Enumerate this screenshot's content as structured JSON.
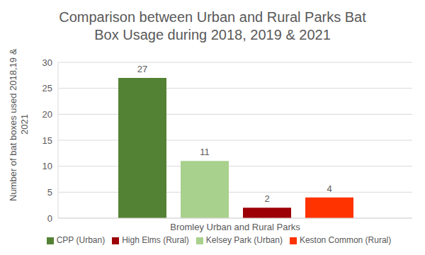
{
  "chart_data": {
    "type": "bar",
    "title": "Comparison between Urban and Rural Parks Bat Box Usage during 2018, 2019 & 2021",
    "y_label": "Number of bat boxes used 2018,19 & 2021",
    "categories": [
      "Bromley Urban and Rural Parks"
    ],
    "series": [
      {
        "name": "CPP (Urban)",
        "color": "#548235",
        "values": [
          27
        ]
      },
      {
        "name": "Kelsey Park (Urban)",
        "color": "#a9d18e",
        "values": [
          11
        ]
      },
      {
        "name": "High Elms (Rural)",
        "color": "#9c0006",
        "values": [
          2
        ]
      },
      {
        "name": "Keston Common (Rural)",
        "color": "#ff3300",
        "values": [
          4
        ]
      }
    ],
    "ylim": [
      0,
      30
    ],
    "yticks": [
      0,
      5,
      10,
      15,
      20,
      25,
      30
    ],
    "grid": true,
    "data_labels": true,
    "legend": "bottom"
  }
}
